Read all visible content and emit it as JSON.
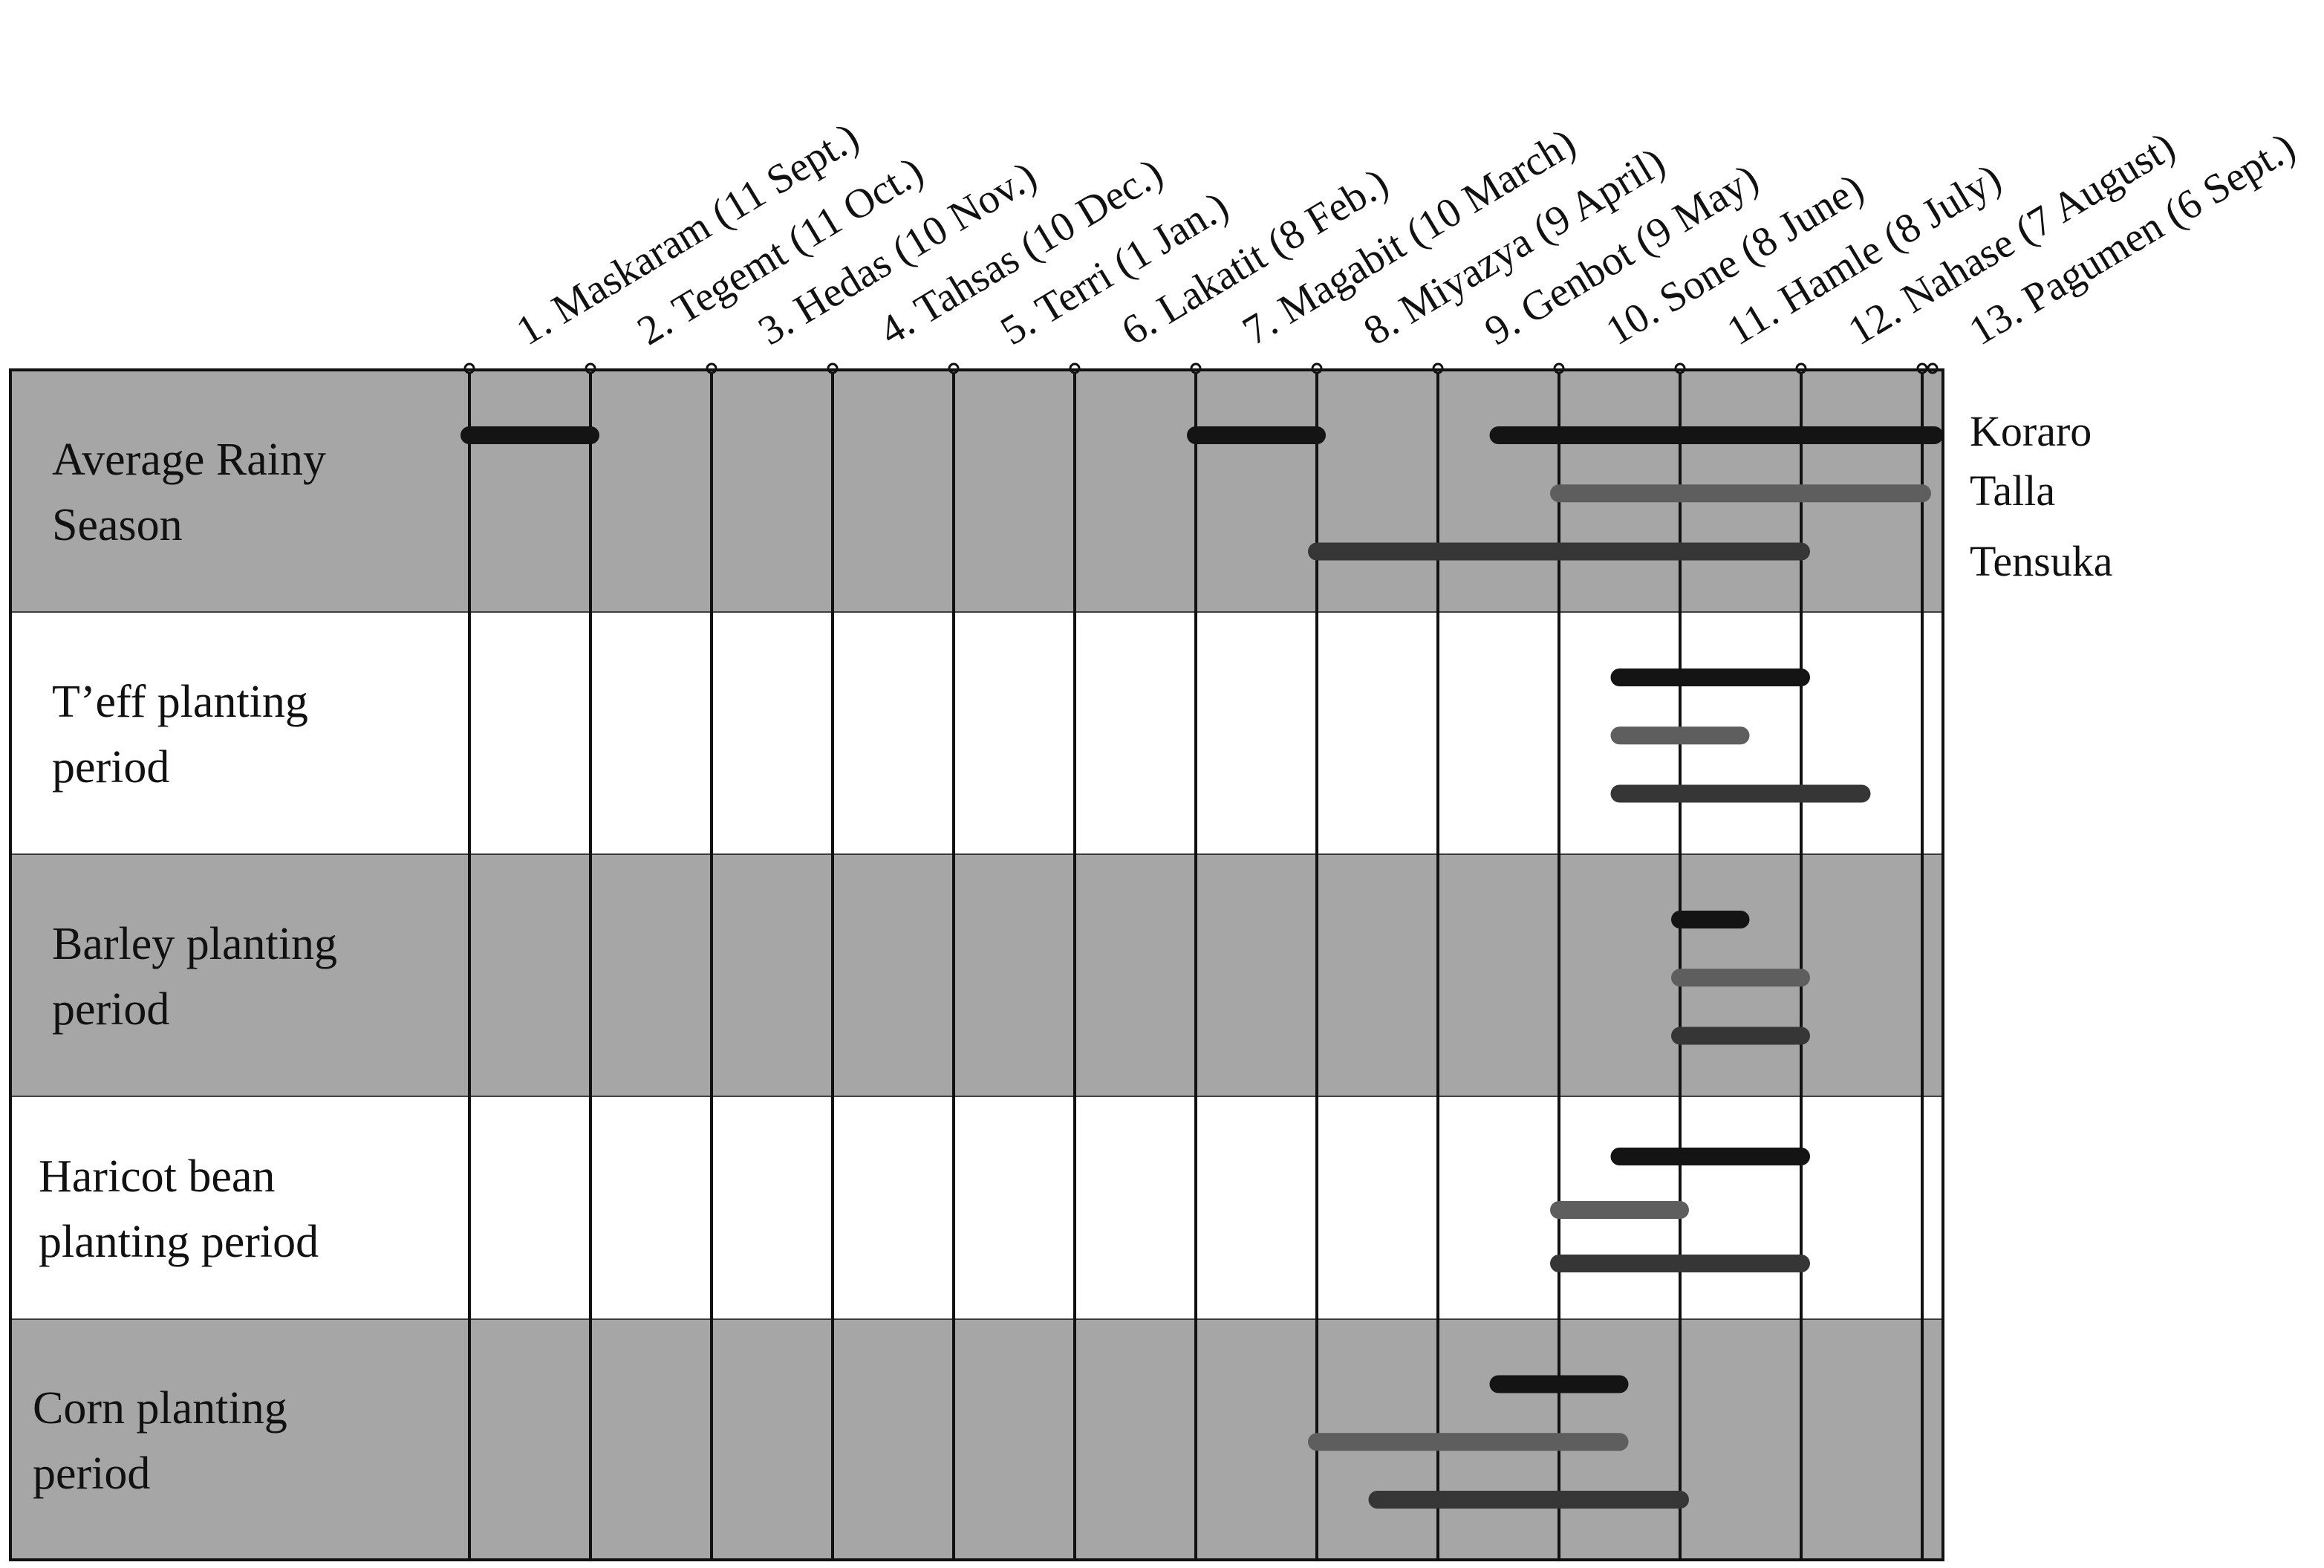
{
  "chart_data": {
    "type": "gantt",
    "months": [
      "1. Maskaram (11 Sept.)",
      "2. Tegemt (11 Oct.)",
      "3. Hedas (10 Nov.)",
      "4. Tahsas (10 Dec.)",
      "5. Terri (1 Jan.)",
      "6. Lakatit (8 Feb.)",
      "7. Magabit (10 March)",
      "8. Miyazya (9 April)",
      "9. Genbot (9 May)",
      "10. Sone (8 June)",
      "11. Hamle (8 July)",
      "12. Nahase (7 August)",
      "13. Pagumen (6 Sept.)"
    ],
    "rows": [
      {
        "label_lines": [
          "Average Rainy",
          "Season"
        ],
        "shaded": true
      },
      {
        "label_lines": [
          "T’eff planting",
          "period"
        ],
        "shaded": false
      },
      {
        "label_lines": [
          "Barley planting",
          "period"
        ],
        "shaded": true
      },
      {
        "label_lines": [
          "Haricot bean",
          "planting period"
        ],
        "shaded": false
      },
      {
        "label_lines": [
          "Corn planting",
          "period"
        ],
        "shaded": true
      }
    ],
    "series": [
      {
        "name": "Koraro",
        "color": "#141414"
      },
      {
        "name": "Talla",
        "color": "#5e5e5e"
      },
      {
        "name": "Tensuka",
        "color": "#363636"
      }
    ],
    "bars": [
      {
        "row": 0,
        "series": 0,
        "segments": [
          [
            0,
            1
          ],
          [
            6,
            7
          ],
          [
            8.5,
            12.1
          ]
        ]
      },
      {
        "row": 0,
        "series": 1,
        "segments": [
          [
            9,
            12
          ]
        ]
      },
      {
        "row": 0,
        "series": 2,
        "segments": [
          [
            7,
            11
          ]
        ]
      },
      {
        "row": 1,
        "series": 0,
        "segments": [
          [
            9.5,
            11
          ]
        ]
      },
      {
        "row": 1,
        "series": 1,
        "segments": [
          [
            9.5,
            10.5
          ]
        ]
      },
      {
        "row": 1,
        "series": 2,
        "segments": [
          [
            9.5,
            11.5
          ]
        ]
      },
      {
        "row": 2,
        "series": 0,
        "segments": [
          [
            10,
            10.5
          ]
        ]
      },
      {
        "row": 2,
        "series": 1,
        "segments": [
          [
            10,
            11
          ]
        ]
      },
      {
        "row": 2,
        "series": 2,
        "segments": [
          [
            10,
            11
          ]
        ]
      },
      {
        "row": 3,
        "series": 0,
        "segments": [
          [
            9.5,
            11
          ]
        ]
      },
      {
        "row": 3,
        "series": 1,
        "segments": [
          [
            9,
            10
          ]
        ]
      },
      {
        "row": 3,
        "series": 2,
        "segments": [
          [
            9,
            11
          ]
        ]
      },
      {
        "row": 4,
        "series": 0,
        "segments": [
          [
            8.5,
            9.5
          ]
        ]
      },
      {
        "row": 4,
        "series": 1,
        "segments": [
          [
            7,
            9.5
          ]
        ]
      },
      {
        "row": 4,
        "series": 2,
        "segments": [
          [
            7.5,
            10
          ]
        ]
      }
    ],
    "shade_color": "#a6a6a6",
    "grid": true,
    "legend_position": "right"
  }
}
